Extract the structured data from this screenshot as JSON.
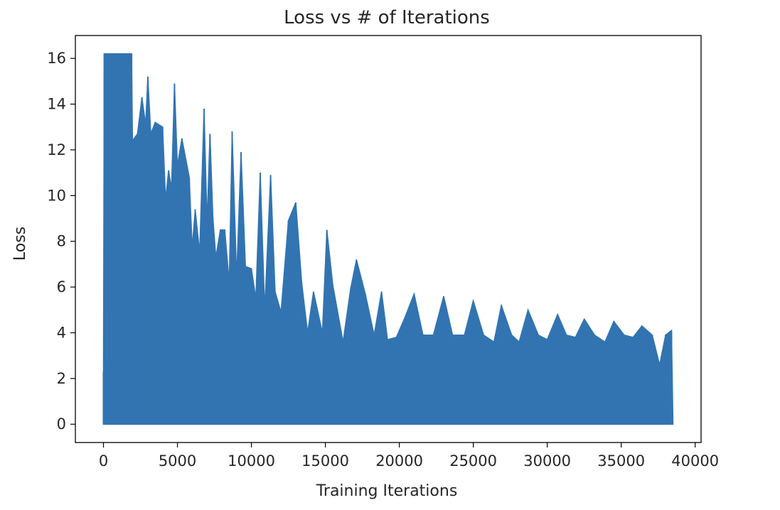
{
  "chart_data": {
    "type": "line",
    "title": "Loss vs # of Iterations",
    "xlabel": "Training Iterations",
    "ylabel": "Loss",
    "xlim": [
      -1900,
      40400
    ],
    "ylim": [
      -0.8,
      17.0
    ],
    "xticks": [
      0,
      5000,
      10000,
      15000,
      20000,
      25000,
      30000,
      35000,
      40000
    ],
    "yticks": [
      0,
      2,
      4,
      6,
      8,
      10,
      12,
      14,
      16
    ],
    "grid": false,
    "color": "#3274b1",
    "series": [
      {
        "x_range": [
          0,
          38500
        ],
        "min_value": 0.0,
        "upper_envelope": [
          [
            0,
            2.3
          ],
          [
            50,
            16.2
          ],
          [
            1900,
            16.2
          ],
          [
            1960,
            12.4
          ],
          [
            2300,
            12.7
          ],
          [
            2600,
            14.3
          ],
          [
            2850,
            13.1
          ],
          [
            3000,
            15.2
          ],
          [
            3200,
            12.7
          ],
          [
            3500,
            13.2
          ],
          [
            4000,
            13.0
          ],
          [
            4200,
            9.8
          ],
          [
            4400,
            11.1
          ],
          [
            4600,
            10.3
          ],
          [
            4800,
            14.9
          ],
          [
            5000,
            11.3
          ],
          [
            5300,
            12.5
          ],
          [
            5800,
            10.8
          ],
          [
            6000,
            7.7
          ],
          [
            6200,
            9.4
          ],
          [
            6500,
            7.5
          ],
          [
            6800,
            13.8
          ],
          [
            7000,
            8.8
          ],
          [
            7200,
            12.7
          ],
          [
            7400,
            9.0
          ],
          [
            7600,
            7.3
          ],
          [
            7900,
            8.5
          ],
          [
            8200,
            8.5
          ],
          [
            8500,
            6.2
          ],
          [
            8700,
            12.8
          ],
          [
            9000,
            6.4
          ],
          [
            9300,
            11.9
          ],
          [
            9600,
            6.9
          ],
          [
            10000,
            6.8
          ],
          [
            10300,
            5.5
          ],
          [
            10600,
            11.0
          ],
          [
            10900,
            5.0
          ],
          [
            11300,
            10.9
          ],
          [
            11600,
            5.8
          ],
          [
            12000,
            4.9
          ],
          [
            12500,
            8.9
          ],
          [
            13000,
            9.7
          ],
          [
            13400,
            6.2
          ],
          [
            13800,
            4.0
          ],
          [
            14200,
            5.8
          ],
          [
            14800,
            4.0
          ],
          [
            15100,
            8.5
          ],
          [
            15500,
            6.1
          ],
          [
            16200,
            3.6
          ],
          [
            16700,
            5.9
          ],
          [
            17100,
            7.2
          ],
          [
            17700,
            5.7
          ],
          [
            18300,
            3.9
          ],
          [
            18800,
            5.8
          ],
          [
            19200,
            3.7
          ],
          [
            19800,
            3.8
          ],
          [
            20400,
            4.7
          ],
          [
            21000,
            5.7
          ],
          [
            21600,
            3.9
          ],
          [
            22300,
            3.9
          ],
          [
            23000,
            5.6
          ],
          [
            23600,
            3.9
          ],
          [
            24400,
            3.9
          ],
          [
            25000,
            5.4
          ],
          [
            25700,
            3.9
          ],
          [
            26400,
            3.6
          ],
          [
            26900,
            5.2
          ],
          [
            27600,
            3.9
          ],
          [
            28100,
            3.6
          ],
          [
            28700,
            5.0
          ],
          [
            29400,
            3.9
          ],
          [
            30000,
            3.7
          ],
          [
            30700,
            4.8
          ],
          [
            31300,
            3.9
          ],
          [
            31900,
            3.8
          ],
          [
            32500,
            4.6
          ],
          [
            33200,
            3.9
          ],
          [
            33900,
            3.6
          ],
          [
            34500,
            4.5
          ],
          [
            35200,
            3.9
          ],
          [
            35800,
            3.8
          ],
          [
            36400,
            4.3
          ],
          [
            37100,
            3.9
          ],
          [
            37600,
            2.6
          ],
          [
            38000,
            3.9
          ],
          [
            38400,
            4.1
          ],
          [
            38500,
            0.0
          ]
        ]
      }
    ]
  }
}
